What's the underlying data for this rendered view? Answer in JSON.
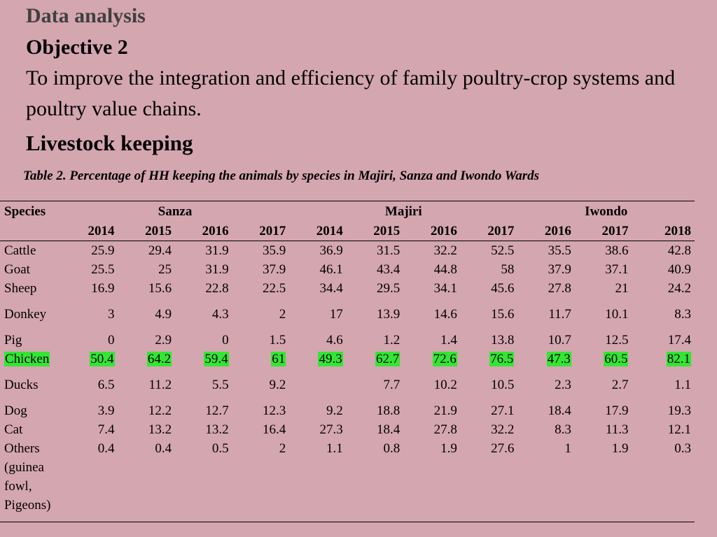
{
  "slide": {
    "heading": "Data analysis",
    "objective_title": "Objective 2",
    "objective_text": "To improve the integration and efficiency of family poultry-crop systems and poultry value chains.",
    "section_title": "Livestock keeping",
    "caption": "Table 2. Percentage of HH keeping the animals by species in Majiri, Sanza and  Iwondo Wards"
  },
  "table": {
    "species_header": "Species",
    "wards": [
      "Sanza",
      "Majiri",
      "Iwondo"
    ],
    "years": [
      "2014",
      "2015",
      "2016",
      "2017",
      "2014",
      "2015",
      "2016",
      "2017",
      "2016",
      "2017",
      "2018"
    ],
    "highlight_color": "#33e633",
    "rows": [
      {
        "species": "Cattle",
        "values": [
          "25.9",
          "29.4",
          "31.9",
          "35.9",
          "36.9",
          "31.5",
          "32.2",
          "52.5",
          "35.5",
          "38.6",
          "42.8"
        ]
      },
      {
        "species": "Goat",
        "values": [
          "25.5",
          "25",
          "31.9",
          "37.9",
          "46.1",
          "43.4",
          "44.8",
          "58",
          "37.9",
          "37.1",
          "40.9"
        ]
      },
      {
        "species": "Sheep",
        "values": [
          "16.9",
          "15.6",
          "22.8",
          "22.5",
          "34.4",
          "29.5",
          "34.1",
          "45.6",
          "27.8",
          "21",
          "24.2"
        ]
      },
      {
        "species": "Donkey",
        "values": [
          "3",
          "4.9",
          "4.3",
          "2",
          "17",
          "13.9",
          "14.6",
          "15.6",
          "11.7",
          "10.1",
          "8.3"
        ]
      },
      {
        "species": "Pig",
        "values": [
          "0",
          "2.9",
          "0",
          "1.5",
          "4.6",
          "1.2",
          "1.4",
          "13.8",
          "10.7",
          "12.5",
          "17.4"
        ]
      },
      {
        "species": "Chicken",
        "highlighted": true,
        "values": [
          "50.4",
          "64.2",
          "59.4",
          "61",
          "49.3",
          "62.7",
          "72.6",
          "76.5",
          "47.3",
          "60.5",
          "82.1"
        ]
      },
      {
        "species": "Ducks",
        "values": [
          "6.5",
          "11.2",
          "5.5",
          "9.2",
          "",
          "7.7",
          "10.2",
          "10.5",
          "2.3",
          "2.7",
          "1.1"
        ]
      },
      {
        "species": "Dog",
        "values": [
          "3.9",
          "12.2",
          "12.7",
          "12.3",
          "9.2",
          "18.8",
          "21.9",
          "27.1",
          "18.4",
          "17.9",
          "19.3"
        ]
      },
      {
        "species": "Cat",
        "values": [
          "7.4",
          "13.2",
          "13.2",
          "16.4",
          "27.3",
          "18.4",
          "27.8",
          "32.2",
          "8.3",
          "11.3",
          "12.1"
        ]
      },
      {
        "species": "Others (guinea fowl, Pigeons)",
        "values": [
          "0.4",
          "0.4",
          "0.5",
          "2",
          "1.1",
          "0.8",
          "1.9",
          "27.6",
          "1",
          "1.9",
          "0.3"
        ]
      }
    ]
  }
}
